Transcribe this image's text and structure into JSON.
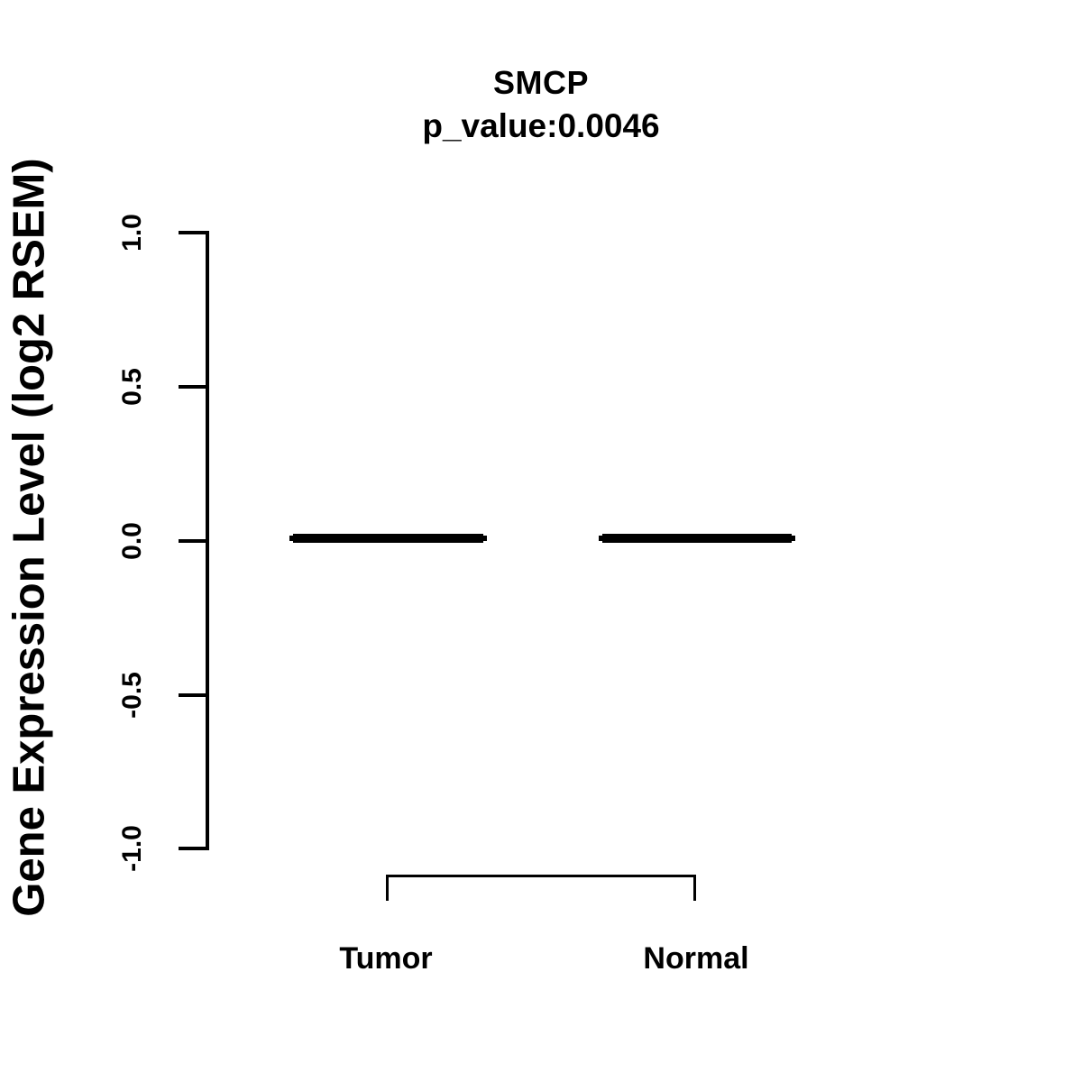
{
  "chart_data": {
    "type": "boxplot",
    "title": "SMCP",
    "subtitle": "p_value:0.0046",
    "gene": "SMCP",
    "p_value": 0.0046,
    "ylabel": "Gene Expression Level (log2 RSEM)",
    "categories": [
      "Tumor",
      "Normal"
    ],
    "series": [
      {
        "name": "Tumor",
        "median": 0.0,
        "q1": 0.0,
        "q3": 0.0,
        "whisker_low": 0.0,
        "whisker_high": 0.0
      },
      {
        "name": "Normal",
        "median": 0.0,
        "q1": 0.0,
        "q3": 0.0,
        "whisker_low": 0.0,
        "whisker_high": 0.0
      }
    ],
    "ylim": [
      -1.0,
      1.0
    ],
    "yticks": [
      "1.0",
      "0.5",
      "0.0",
      "-0.5",
      "-1.0"
    ],
    "grid": false,
    "legend_position": "none",
    "colors": {
      "foreground": "#000000",
      "background": "#ffffff"
    },
    "annotations": [
      {
        "type": "bracket",
        "between": [
          "Tumor",
          "Normal"
        ],
        "label": ""
      }
    ]
  }
}
